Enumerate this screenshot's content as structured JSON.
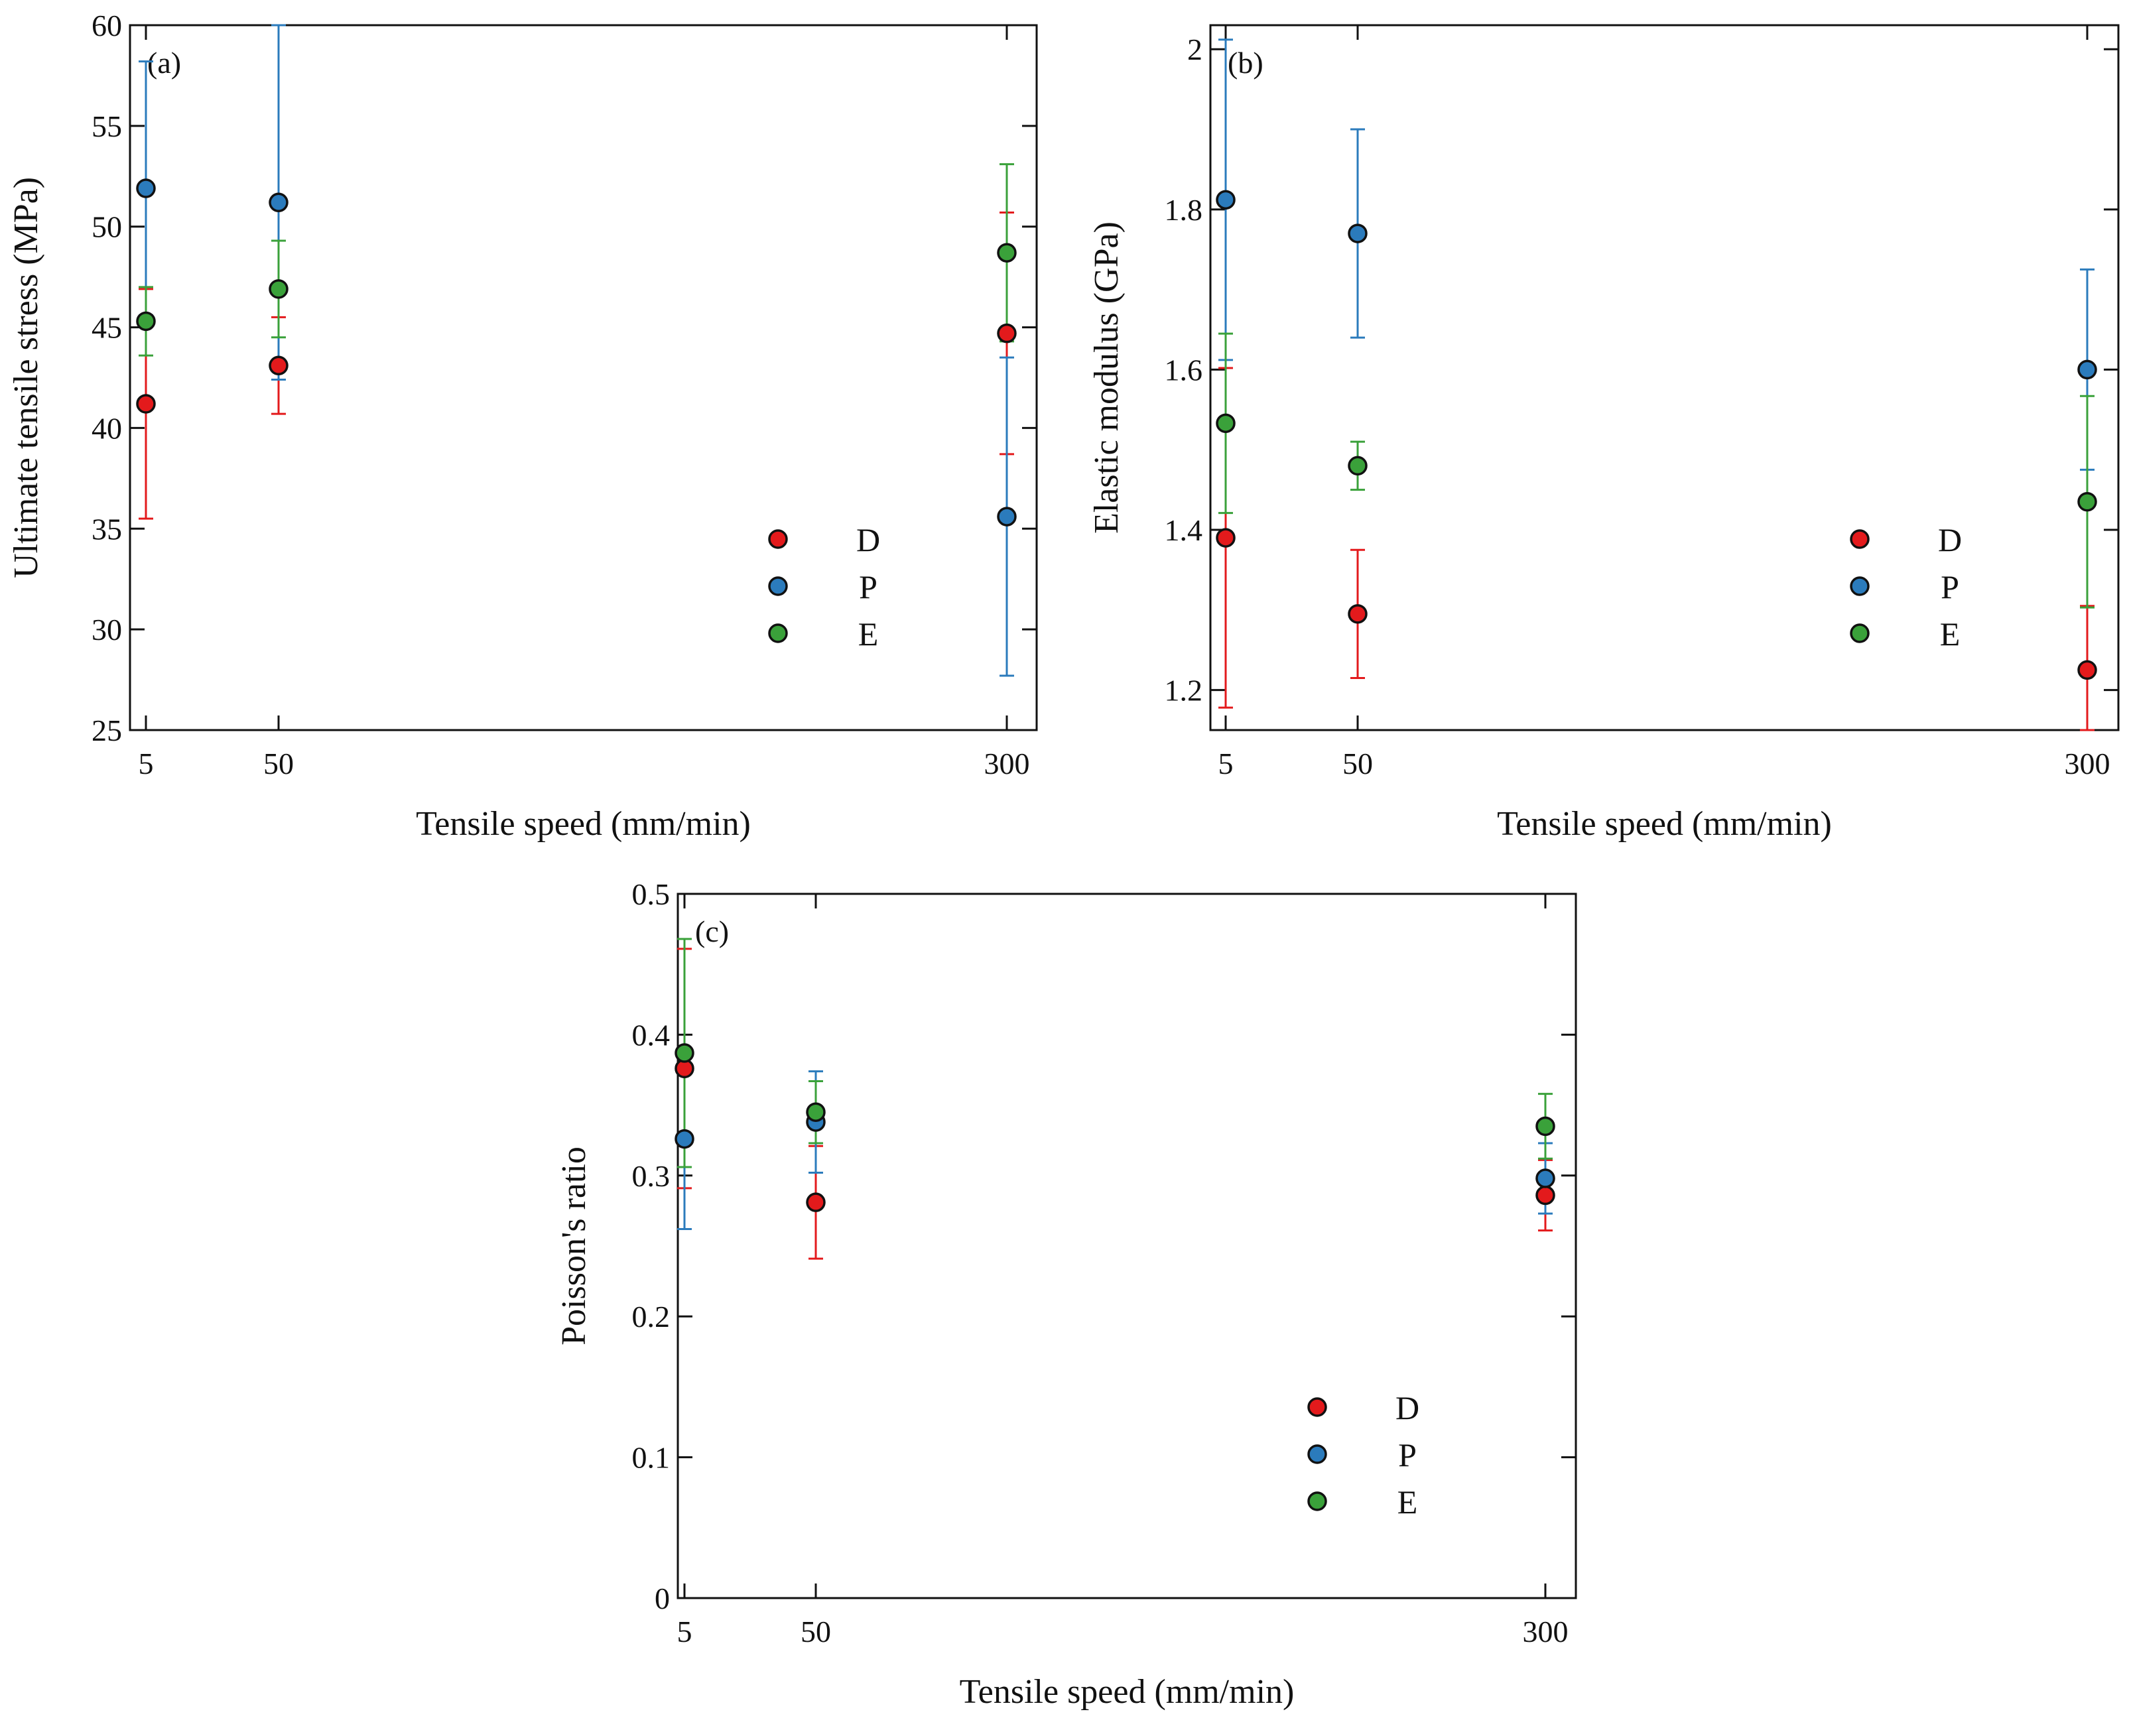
{
  "chart_data": [
    {
      "type": "scatter",
      "panel_label": "(a)",
      "xlabel": "Tensile speed (mm/min)",
      "ylabel": "Ultimate tensile stress (MPa)",
      "ylim": [
        25,
        60
      ],
      "yticks": [
        25,
        30,
        35,
        40,
        45,
        50,
        55,
        60
      ],
      "ytick_labels": [
        "25",
        "30",
        "35",
        "40",
        "45",
        "50",
        "55",
        "60"
      ],
      "x": [
        5,
        50,
        300
      ],
      "xtick_labels": [
        "5",
        "50",
        "300"
      ],
      "legend": {
        "position": "lower-right"
      },
      "series": [
        {
          "name": "D",
          "color": "#e31a1c",
          "values": [
            41.2,
            43.1,
            44.7
          ],
          "errors": [
            5.7,
            2.4,
            6.0
          ]
        },
        {
          "name": "P",
          "color": "#2b7bbc",
          "values": [
            51.9,
            51.2,
            35.6
          ],
          "errors": [
            6.3,
            8.8,
            7.9
          ]
        },
        {
          "name": "E",
          "color": "#3aa13a",
          "values": [
            45.3,
            46.9,
            48.7
          ],
          "errors": [
            1.7,
            2.4,
            4.4
          ]
        }
      ]
    },
    {
      "type": "scatter",
      "panel_label": "(b)",
      "xlabel": "Tensile speed (mm/min)",
      "ylabel": "Elastic modulus (GPa)",
      "ylim": [
        1.15,
        2.03
      ],
      "yticks": [
        1.2,
        1.4,
        1.6,
        1.8,
        2.0
      ],
      "ytick_labels": [
        "1.2",
        "1.4",
        "1.6",
        "1.8",
        "2"
      ],
      "x": [
        5,
        50,
        300
      ],
      "xtick_labels": [
        "5",
        "50",
        "300"
      ],
      "legend": {
        "position": "lower-right"
      },
      "series": [
        {
          "name": "D",
          "color": "#e31a1c",
          "values": [
            1.39,
            1.295,
            1.225
          ],
          "errors": [
            0.212,
            0.08,
            0.08
          ]
        },
        {
          "name": "P",
          "color": "#2b7bbc",
          "values": [
            1.812,
            1.77,
            1.6
          ],
          "errors": [
            0.2,
            0.13,
            0.125
          ]
        },
        {
          "name": "E",
          "color": "#3aa13a",
          "values": [
            1.533,
            1.48,
            1.435
          ],
          "errors": [
            0.112,
            0.03,
            0.132
          ]
        }
      ]
    },
    {
      "type": "scatter",
      "panel_label": "(c)",
      "xlabel": "Tensile speed (mm/min)",
      "ylabel": "Poisson's ratio",
      "ylim": [
        0,
        0.5
      ],
      "yticks": [
        0,
        0.1,
        0.2,
        0.3,
        0.4,
        0.5
      ],
      "ytick_labels": [
        "0",
        "0.1",
        "0.2",
        "0.3",
        "0.4",
        "0.5"
      ],
      "x": [
        5,
        50,
        300
      ],
      "xtick_labels": [
        "5",
        "50",
        "300"
      ],
      "legend": {
        "position": "lower-right"
      },
      "series": [
        {
          "name": "D",
          "color": "#e31a1c",
          "values": [
            0.376,
            0.281,
            0.286
          ],
          "errors": [
            0.085,
            0.04,
            0.025
          ]
        },
        {
          "name": "P",
          "color": "#2b7bbc",
          "values": [
            0.326,
            0.338,
            0.298
          ],
          "errors": [
            0.064,
            0.036,
            0.025
          ]
        },
        {
          "name": "E",
          "color": "#3aa13a",
          "values": [
            0.387,
            0.345,
            0.335
          ],
          "errors": [
            0.081,
            0.022,
            0.023
          ]
        }
      ]
    }
  ]
}
